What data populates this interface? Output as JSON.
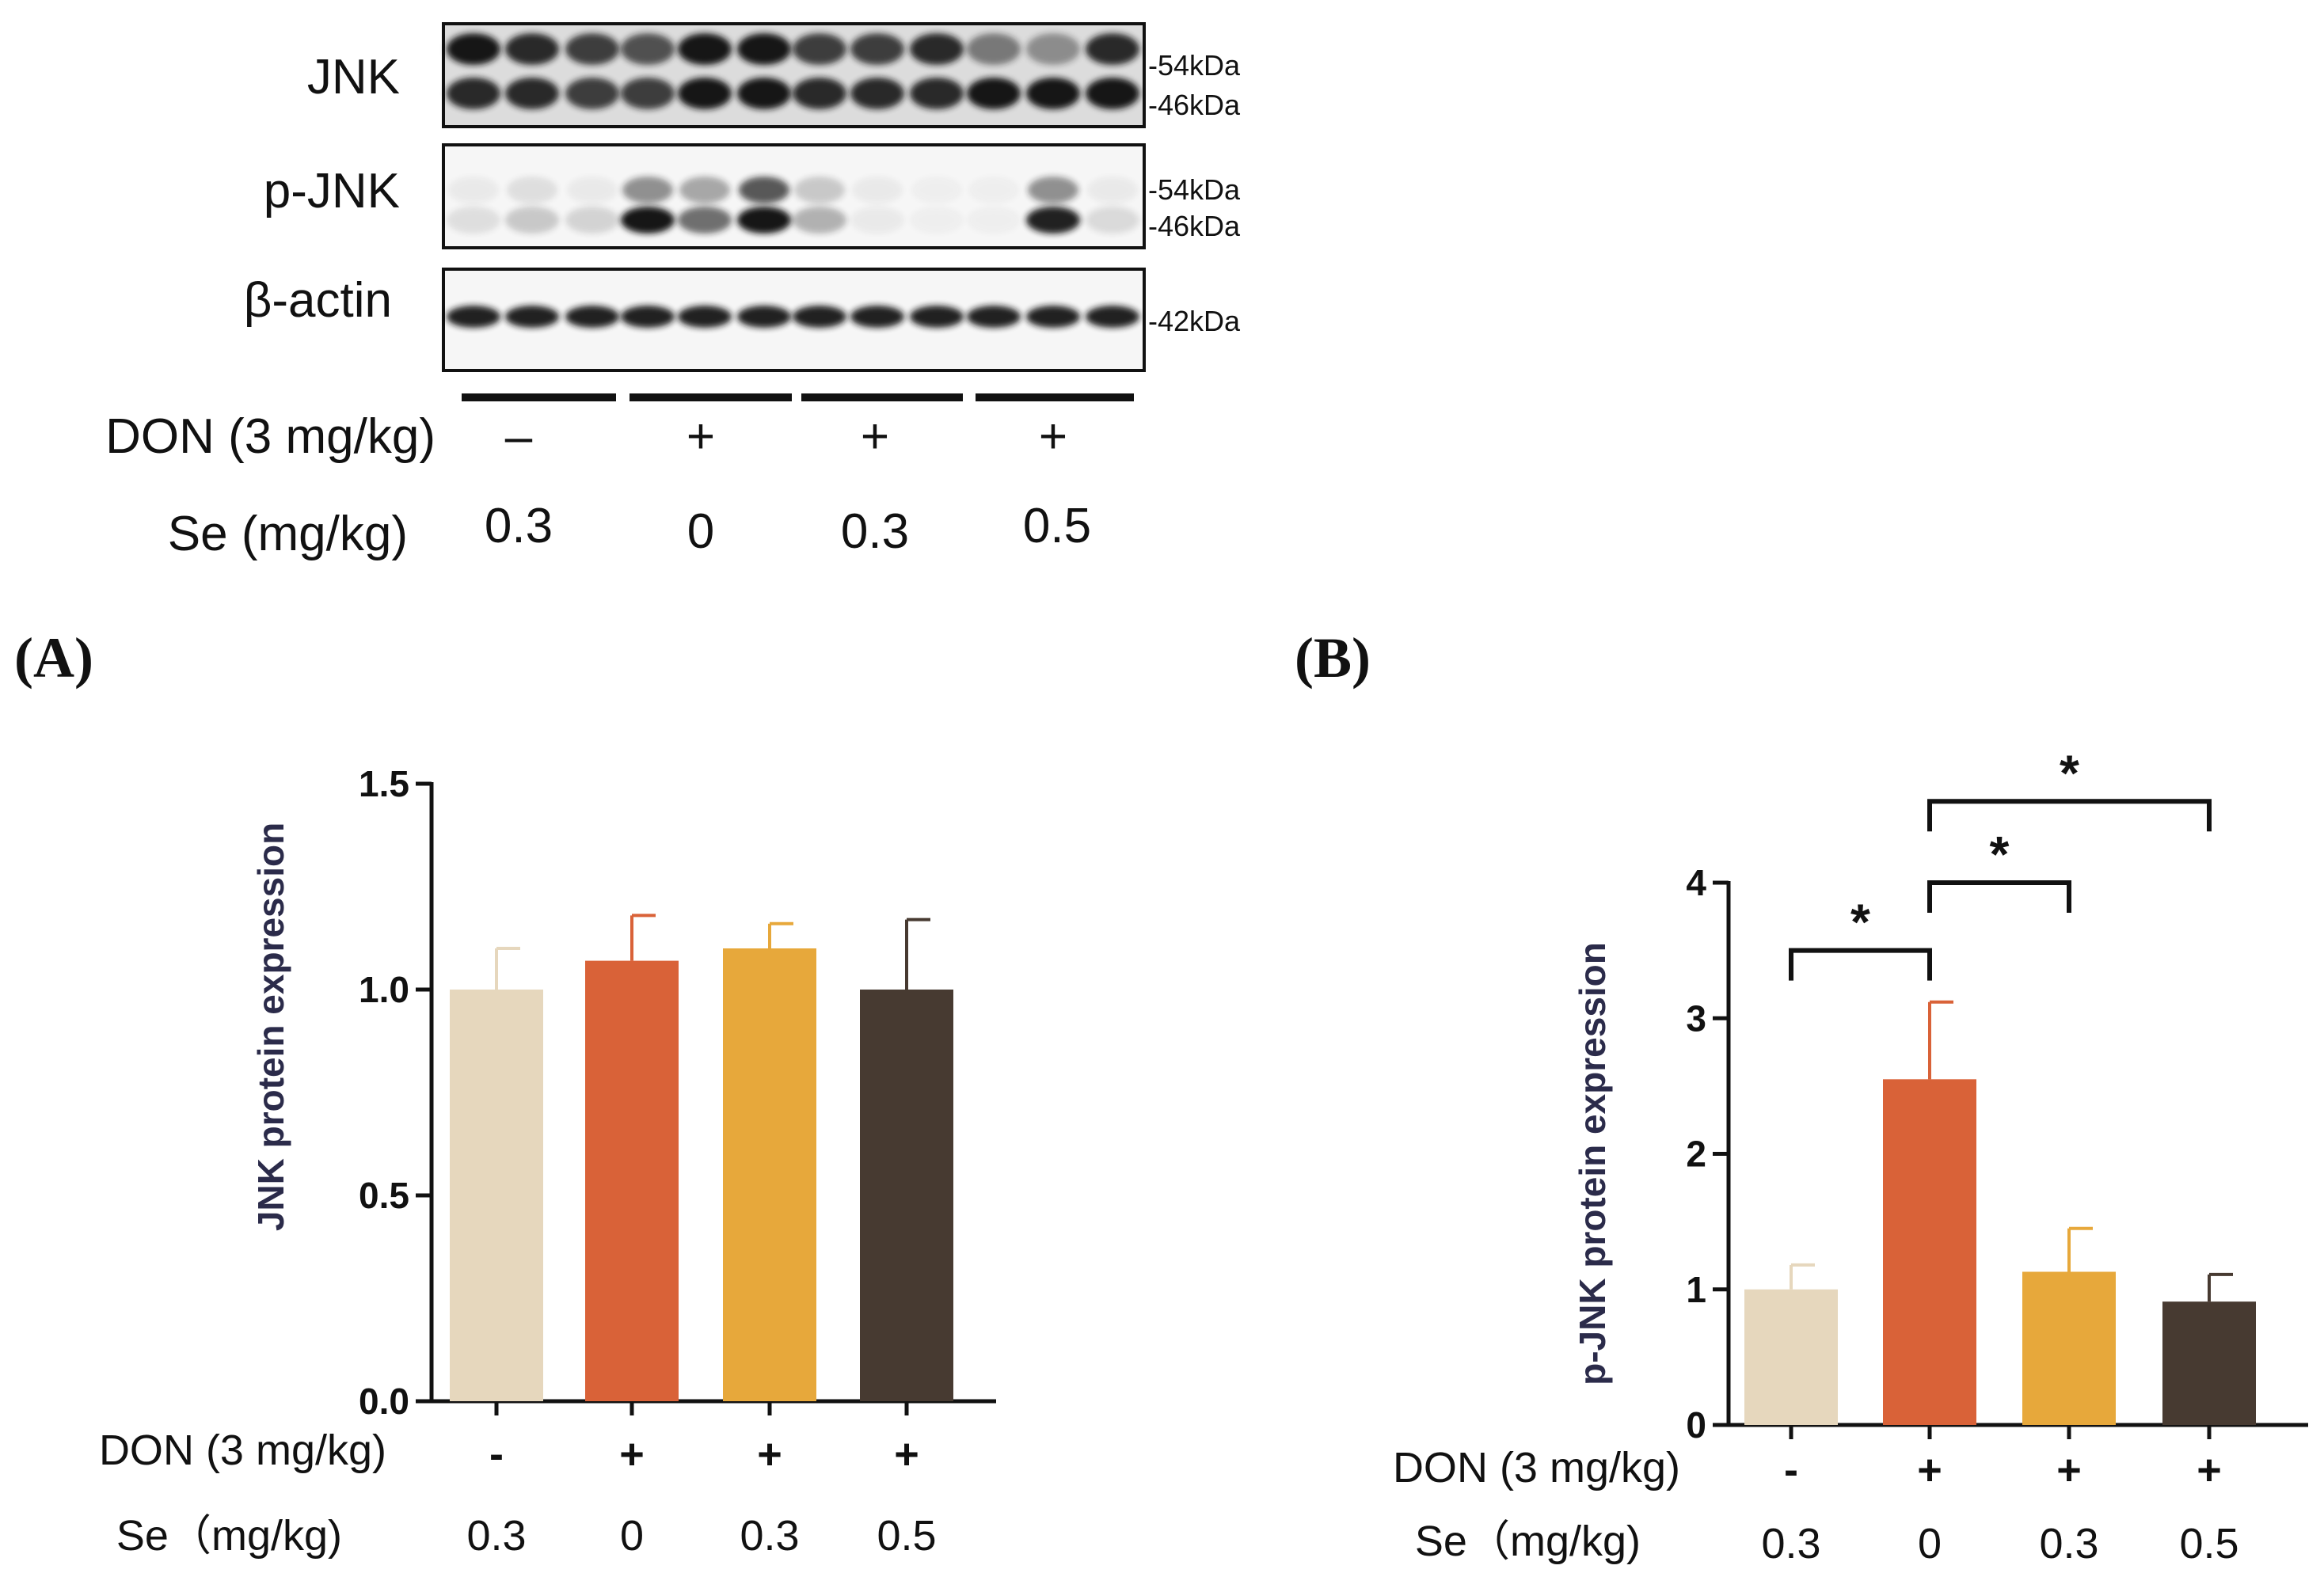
{
  "colors": {
    "ctrl": "#e6d7bd",
    "don": "#d96238",
    "se03": "#e7a83b",
    "se05": "#473a31",
    "axis": "#111111",
    "blot_bg": "#f4f4f4",
    "band": "#141414"
  },
  "blot": {
    "rows": [
      {
        "label": "JNK",
        "markers": [
          "-54kDa",
          "-46kDa"
        ]
      },
      {
        "label": "p-JNK",
        "markers": [
          "-54kDa",
          "-46kDa"
        ]
      },
      {
        "label": "β-actin",
        "markers": [
          "-42kDa"
        ]
      }
    ],
    "groups": [
      {
        "don": "–",
        "se": "0.3"
      },
      {
        "don": "+",
        "se": "0"
      },
      {
        "don": "+",
        "se": "0.3"
      },
      {
        "don": "+",
        "se": "0.5"
      }
    ],
    "don_label": "DON (3 mg/kg)",
    "se_label": "Se  (mg/kg)"
  },
  "panels": {
    "a": "(A)",
    "b": "(B)"
  },
  "chart_data": [
    {
      "type": "bar",
      "id": "A",
      "ylabel": "JNK protein expression",
      "ylim": [
        0,
        1.5
      ],
      "yticks": [
        "0.0",
        "0.5",
        "1.0",
        "1.5"
      ],
      "ytick_values": [
        0,
        0.5,
        1.0,
        1.5
      ],
      "categories": [
        "DON-/Se0.3",
        "DON+/Se0",
        "DON+/Se0.3",
        "DON+/Se0.5"
      ],
      "values": [
        1.0,
        1.07,
        1.1,
        1.0
      ],
      "errors": [
        0.1,
        0.11,
        0.06,
        0.17
      ],
      "don_label": "DON (3 mg/kg)",
      "don_values": [
        "-",
        "+",
        "+",
        "+"
      ],
      "se_label": "Se（mg/kg)",
      "se_values": [
        "0.3",
        "0",
        "0.3",
        "0.5"
      ],
      "significance": []
    },
    {
      "type": "bar",
      "id": "B",
      "ylabel": "p-JNK protein expression",
      "ylim": [
        0,
        4
      ],
      "yticks": [
        "0",
        "1",
        "2",
        "3",
        "4"
      ],
      "ytick_values": [
        0,
        1,
        2,
        3,
        4
      ],
      "categories": [
        "DON-/Se0.3",
        "DON+/Se0",
        "DON+/Se0.3",
        "DON+/Se0.5"
      ],
      "values": [
        1.0,
        2.55,
        1.13,
        0.91
      ],
      "errors": [
        0.18,
        0.57,
        0.32,
        0.2
      ],
      "don_label": "DON (3 mg/kg)",
      "don_values": [
        "-",
        "+",
        "+",
        "+"
      ],
      "se_label": "Se（mg/kg)",
      "se_values": [
        "0.3",
        "0",
        "0.3",
        "0.5"
      ],
      "significance": [
        {
          "from": 0,
          "to": 1,
          "label": "*",
          "level": 3.5
        },
        {
          "from": 1,
          "to": 2,
          "label": "*",
          "level": 4.0
        },
        {
          "from": 1,
          "to": 3,
          "label": "*",
          "level": 4.6
        }
      ]
    }
  ]
}
